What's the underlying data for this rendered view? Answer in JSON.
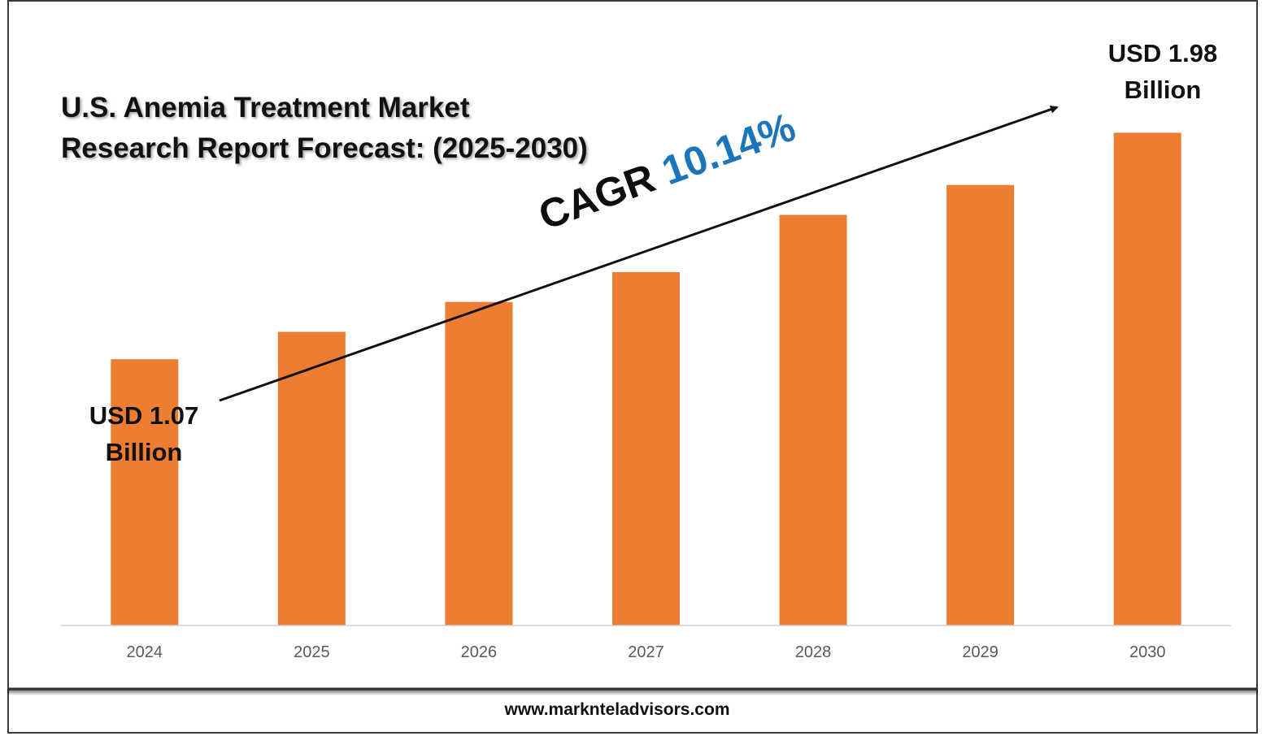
{
  "chart_data": {
    "type": "bar",
    "title": "U.S. Anemia Treatment Market Research Report Forecast: (2025-2030)",
    "title_lines": [
      "U.S. Anemia Treatment Market",
      "Research Report Forecast: (2025-2030)"
    ],
    "categories": [
      "2024",
      "2025",
      "2026",
      "2027",
      "2028",
      "2029",
      "2030"
    ],
    "values": [
      1.07,
      1.18,
      1.3,
      1.42,
      1.65,
      1.77,
      1.98
    ],
    "unit": "USD Billion",
    "ylim": [
      0,
      2.2
    ],
    "grid": false,
    "bar_color": "#ed7d31",
    "annotations": {
      "start_label_lines": [
        "USD 1.07",
        "Billion"
      ],
      "end_label_lines": [
        "USD 1.98",
        "Billion"
      ],
      "cagr_prefix": "CAGR",
      "cagr_value": "10.14%",
      "cagr_color": "#1b75bb"
    }
  },
  "footer": {
    "website": "www.marknteladvisors.com"
  }
}
